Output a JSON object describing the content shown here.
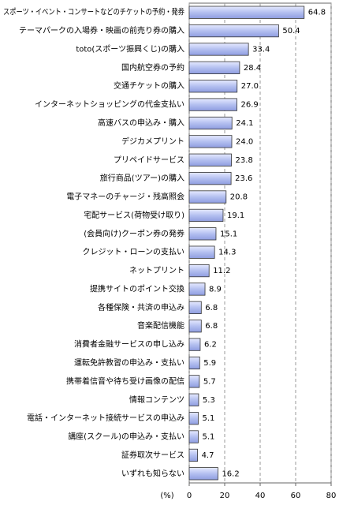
{
  "chart_data": {
    "type": "barh",
    "categories": [
      "スポーツ・イベント・コンサートなどのチケットの予約・発券",
      "テーマパークの入場券・映画の前売り券の購入",
      "toto(スポーツ振興くじ)の購入",
      "国内航空券の予約",
      "交通チケットの購入",
      "インターネットショッピングの代金支払い",
      "高速バスの申込み・購入",
      "デジカメプリント",
      "プリペイドサービス",
      "旅行商品(ツアー)の購入",
      "電子マネーのチャージ・残高照会",
      "宅配サービス(荷物受け取り)",
      "(会員向け)クーポン券の発券",
      "クレジット・ローンの支払い",
      "ネットプリント",
      "提携サイトのポイント交換",
      "各種保険・共済の申込み",
      "音楽配信機能",
      "消費者金融サービスの申し込み",
      "運転免許教習の申込み・支払い",
      "携帯着信音や待ち受け画像の配信",
      "情報コンテンツ",
      "電話・インターネット接続サービスの申込み",
      "講座(スクール)の申込み・支払い",
      "証券取次サービス",
      "いずれも知らない"
    ],
    "values": [
      64.8,
      50.4,
      33.4,
      28.4,
      27.0,
      26.9,
      24.1,
      24.0,
      23.8,
      23.6,
      20.8,
      19.1,
      15.1,
      14.3,
      11.2,
      8.9,
      6.8,
      6.8,
      6.2,
      5.9,
      5.7,
      5.3,
      5.1,
      5.1,
      4.7,
      16.2
    ],
    "value_labels": [
      "64.8",
      "50.4",
      "33.4",
      "28.4",
      "27.0",
      "26.9",
      "24.1",
      "24.0",
      "23.8",
      "23.6",
      "20.8",
      "19.1",
      "15.1",
      "14.3",
      "11.2",
      "8.9",
      "6.8",
      "6.8",
      "6.2",
      "5.9",
      "5.7",
      "5.3",
      "5.1",
      "5.1",
      "4.7",
      "16.2"
    ],
    "color": "#b4c0f0",
    "xlabel": "(%)",
    "xlim": [
      0,
      80
    ],
    "xticks": [
      0,
      20,
      40,
      60,
      80
    ],
    "grid": true
  }
}
